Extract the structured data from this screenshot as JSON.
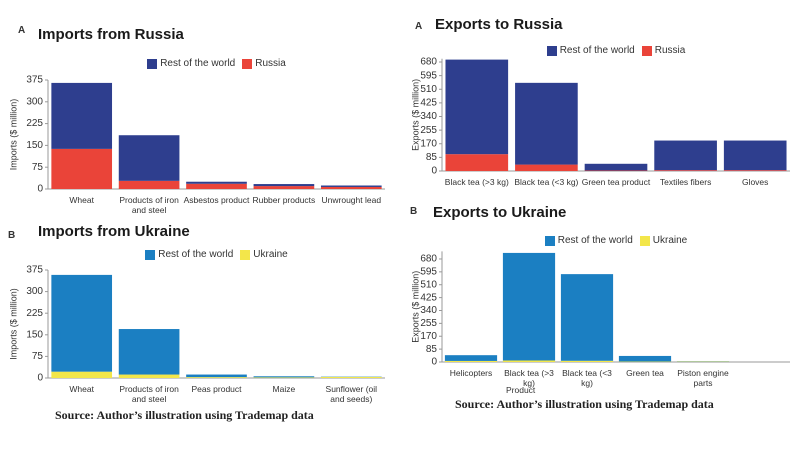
{
  "chart_data": [
    {
      "type": "bar",
      "panel": "A",
      "title": "Imports from Russia",
      "y_label": "Imports ($ million)",
      "categories": [
        "Wheat",
        "Products of iron and steel",
        "Asbestos product",
        "Rubber products",
        "Unwrought lead"
      ],
      "series": [
        {
          "name": "Rest of the world",
          "color": "#2e3e8e",
          "values": [
            227,
            157,
            7,
            7,
            5
          ]
        },
        {
          "name": "Russia",
          "color": "#ea4439",
          "values": [
            138,
            28,
            18,
            10,
            7
          ]
        }
      ],
      "ylim": [
        0,
        375
      ],
      "yticks": [
        0,
        75,
        150,
        225,
        300,
        375
      ],
      "stacked": true,
      "grid": false
    },
    {
      "type": "bar",
      "panel": "B",
      "title": "Imports from Ukraine",
      "y_label": "Imports ($ million)",
      "categories": [
        "Wheat",
        "Products of iron and steel",
        "Peas product",
        "Maize",
        "Sunflower (oil and seeds)"
      ],
      "series": [
        {
          "name": "Rest of the world",
          "color": "#1b7fc2",
          "values": [
            336,
            158,
            9,
            4,
            1
          ]
        },
        {
          "name": "Ukraine",
          "color": "#f3e64a",
          "values": [
            22,
            12,
            3,
            2,
            4
          ]
        }
      ],
      "ylim": [
        0,
        375
      ],
      "yticks": [
        0,
        75,
        150,
        225,
        300,
        375
      ],
      "stacked": true,
      "grid": false,
      "source": "Source: Author’s illustration using Trademap data"
    },
    {
      "type": "bar",
      "panel": "A",
      "title": "Exports to Russia",
      "y_label": "Exports ($ million)",
      "categories": [
        "Black tea (>3 kg)",
        "Black tea (<3 kg)",
        "Green tea product",
        "Textiles fibers",
        "Gloves"
      ],
      "series": [
        {
          "name": "Rest of the world",
          "color": "#2e3e8e",
          "values": [
            590,
            510,
            42,
            185,
            185
          ]
        },
        {
          "name": "Russia",
          "color": "#ea4439",
          "values": [
            105,
            40,
            3,
            5,
            5
          ]
        }
      ],
      "ylim": [
        0,
        700
      ],
      "yticks": [
        0,
        85,
        170,
        255,
        340,
        425,
        510,
        595,
        680
      ],
      "stacked": true,
      "grid": false
    },
    {
      "type": "bar",
      "panel": "B",
      "title": "Exports to Ukraine",
      "y_label": "Exports ($ million)",
      "x_label": "Product",
      "categories": [
        "Helicopters",
        "Black tea (>3 kg)",
        "Black tea (<3 kg)",
        "Green tea",
        "Piston engine parts"
      ],
      "series": [
        {
          "name": "Rest of the world",
          "color": "#1b7fc2",
          "values": [
            38,
            710,
            572,
            37,
            2
          ]
        },
        {
          "name": "Ukraine",
          "color": "#f3e64a",
          "values": [
            7,
            10,
            8,
            3,
            3
          ]
        }
      ],
      "ylim": [
        0,
        730
      ],
      "yticks": [
        0,
        85,
        170,
        255,
        340,
        425,
        510,
        595,
        680
      ],
      "stacked": true,
      "grid": false,
      "source": "Source: Author’s illustration using Trademap data"
    }
  ]
}
